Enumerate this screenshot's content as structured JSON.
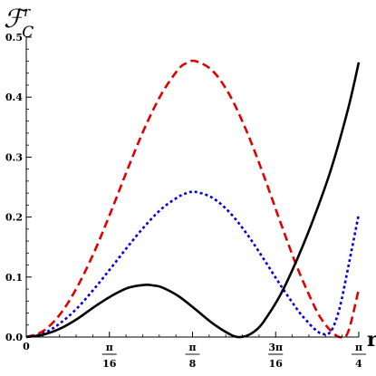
{
  "chart_data": {
    "type": "line",
    "title": "",
    "xlabel": "r",
    "ylabel": {
      "main": "ℱ",
      "superscript": "r",
      "subscript": "C"
    },
    "xlim": [
      0,
      0.7854
    ],
    "ylim": [
      0,
      0.5
    ],
    "yticks": [
      {
        "value": 0.0,
        "label": "0.0"
      },
      {
        "value": 0.1,
        "label": "0.1"
      },
      {
        "value": 0.2,
        "label": "0.2"
      },
      {
        "value": 0.3,
        "label": "0.3"
      },
      {
        "value": 0.4,
        "label": "0.4"
      },
      {
        "value": 0.5,
        "label": "0.5"
      }
    ],
    "xticks": [
      {
        "value": 0.0,
        "label": "0"
      },
      {
        "value": 0.19635,
        "num": "π",
        "den": "16"
      },
      {
        "value": 0.3927,
        "num": "π",
        "den": "8"
      },
      {
        "value": 0.58905,
        "num": "3π",
        "den": "16"
      },
      {
        "value": 0.7854,
        "num": "π",
        "den": "4"
      }
    ],
    "grid": false,
    "legend": "none",
    "series": [
      {
        "color": "#e00000",
        "style": "dashed",
        "x": [
          0,
          0.04,
          0.08,
          0.12,
          0.16,
          0.2,
          0.24,
          0.28,
          0.32,
          0.36,
          0.38,
          0.4,
          0.44,
          0.48,
          0.52,
          0.56,
          0.6,
          0.64,
          0.68,
          0.7,
          0.72,
          0.74,
          0.76,
          0.7854
        ],
        "y": [
          0,
          0.01,
          0.038,
          0.083,
          0.141,
          0.209,
          0.281,
          0.349,
          0.406,
          0.447,
          0.457,
          0.46,
          0.444,
          0.404,
          0.344,
          0.271,
          0.192,
          0.116,
          0.052,
          0.027,
          0.01,
          0.0,
          0.008,
          0.08
        ]
      },
      {
        "color": "#0000e0",
        "style": "dotted",
        "x": [
          0,
          0.04,
          0.08,
          0.12,
          0.16,
          0.2,
          0.24,
          0.28,
          0.32,
          0.36,
          0.38,
          0.4,
          0.44,
          0.48,
          0.52,
          0.56,
          0.6,
          0.64,
          0.66,
          0.68,
          0.7,
          0.72,
          0.74,
          0.76,
          0.7854
        ],
        "y": [
          0,
          0.006,
          0.023,
          0.048,
          0.08,
          0.115,
          0.151,
          0.185,
          0.214,
          0.234,
          0.24,
          0.242,
          0.232,
          0.208,
          0.173,
          0.131,
          0.087,
          0.046,
          0.029,
          0.014,
          0.005,
          0.01,
          0.048,
          0.115,
          0.205
        ]
      },
      {
        "color": "#000000",
        "style": "solid",
        "x": [
          0,
          0.04,
          0.08,
          0.12,
          0.16,
          0.2,
          0.24,
          0.28,
          0.3,
          0.32,
          0.36,
          0.4,
          0.44,
          0.48,
          0.5,
          0.52,
          0.54,
          0.56,
          0.6,
          0.64,
          0.68,
          0.72,
          0.76,
          0.7854
        ],
        "y": [
          0,
          0.004,
          0.014,
          0.03,
          0.05,
          0.068,
          0.082,
          0.087,
          0.086,
          0.083,
          0.068,
          0.046,
          0.023,
          0.005,
          0.0,
          0.002,
          0.01,
          0.025,
          0.07,
          0.13,
          0.2,
          0.28,
          0.38,
          0.458
        ]
      }
    ]
  }
}
